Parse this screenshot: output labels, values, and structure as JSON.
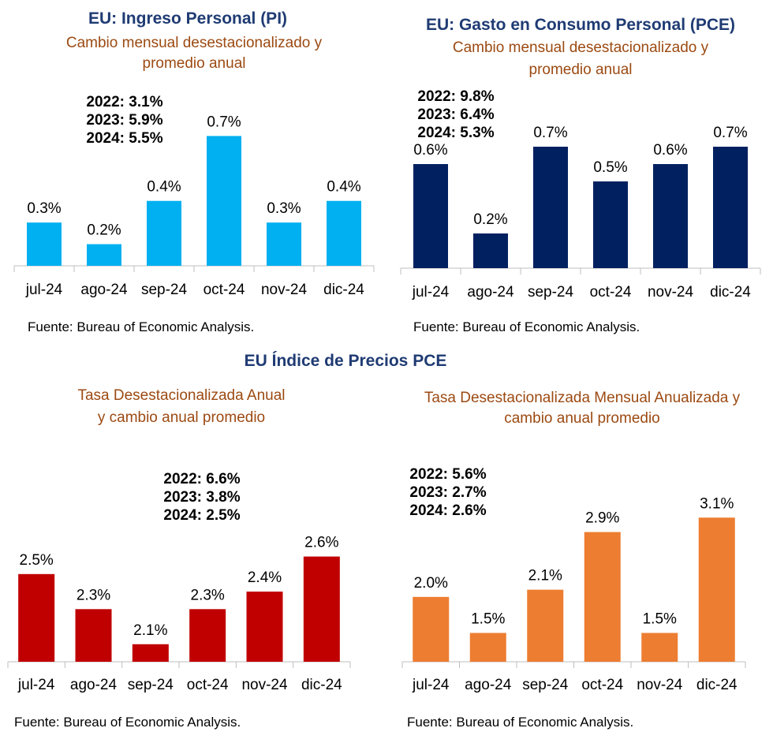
{
  "section_title": "EU Índice de Precios PCE",
  "chart_data": [
    {
      "type": "bar",
      "title": "EU: Ingreso Personal (PI)",
      "subtitle_lines": [
        "Cambio mensual desestacionalizado y",
        "promedio anual"
      ],
      "categories": [
        "jul-24",
        "ago-24",
        "sep-24",
        "oct-24",
        "nov-24",
        "dic-24"
      ],
      "values": [
        0.3,
        0.2,
        0.4,
        0.7,
        0.3,
        0.4
      ],
      "data_labels": [
        "0.3%",
        "0.2%",
        "0.4%",
        "0.7%",
        "0.3%",
        "0.4%"
      ],
      "annotation_lines": [
        "2022: 3.1%",
        "2023: 5.9%",
        "2024: 5.5%"
      ],
      "source": "Fuente:    Bureau of Economic Analysis.",
      "color": "#00b0f0",
      "ylim": [
        0.1,
        0.8
      ]
    },
    {
      "type": "bar",
      "title": "EU: Gasto en Consumo Personal (PCE)",
      "subtitle_lines": [
        "Cambio mensual desestacionalizado y",
        "promedio anual"
      ],
      "categories": [
        "jul-24",
        "ago-24",
        "sep-24",
        "oct-24",
        "nov-24",
        "dic-24"
      ],
      "values": [
        0.6,
        0.2,
        0.7,
        0.5,
        0.6,
        0.7
      ],
      "data_labels": [
        "0.6%",
        "0.2%",
        "0.7%",
        "0.5%",
        "0.6%",
        "0.7%"
      ],
      "annotation_lines": [
        "2022: 9.8%",
        "2023: 6.4%",
        "2024: 5.3%"
      ],
      "source": "Fuente:    Bureau of Economic Analysis.",
      "color": "#002060",
      "ylim": [
        0.0,
        1.0
      ]
    },
    {
      "type": "bar",
      "title": "",
      "subtitle_lines": [
        "Tasa Desestacionalizada Anual",
        "y cambio anual promedio"
      ],
      "categories": [
        "jul-24",
        "ago-24",
        "sep-24",
        "oct-24",
        "nov-24",
        "dic-24"
      ],
      "values": [
        2.5,
        2.3,
        2.1,
        2.3,
        2.4,
        2.6
      ],
      "data_labels": [
        "2.5%",
        "2.3%",
        "2.1%",
        "2.3%",
        "2.4%",
        "2.6%"
      ],
      "annotation_lines": [
        "2022: 6.6%",
        "2023: 3.8%",
        "2024: 2.5%"
      ],
      "source": "Fuente: Bureau of Economic Analysis.",
      "color": "#c00000",
      "ylim": [
        2.0,
        2.85
      ]
    },
    {
      "type": "bar",
      "title": "",
      "subtitle_lines": [
        "Tasa Desestacionalizada Mensual Anualizada y",
        "cambio anual promedio"
      ],
      "categories": [
        "jul-24",
        "ago-24",
        "sep-24",
        "oct-24",
        "nov-24",
        "dic-24"
      ],
      "values": [
        2.0,
        1.5,
        2.1,
        2.9,
        1.5,
        3.1
      ],
      "data_labels": [
        "2.0%",
        "1.5%",
        "2.1%",
        "2.9%",
        "1.5%",
        "3.1%"
      ],
      "annotation_lines": [
        "2022: 5.6%",
        "2023: 2.7%",
        "2024: 2.6%"
      ],
      "source": "Fuente: Bureau of Economic Analysis.",
      "color": "#ed7d31",
      "ylim": [
        1.1,
        3.3
      ]
    }
  ]
}
